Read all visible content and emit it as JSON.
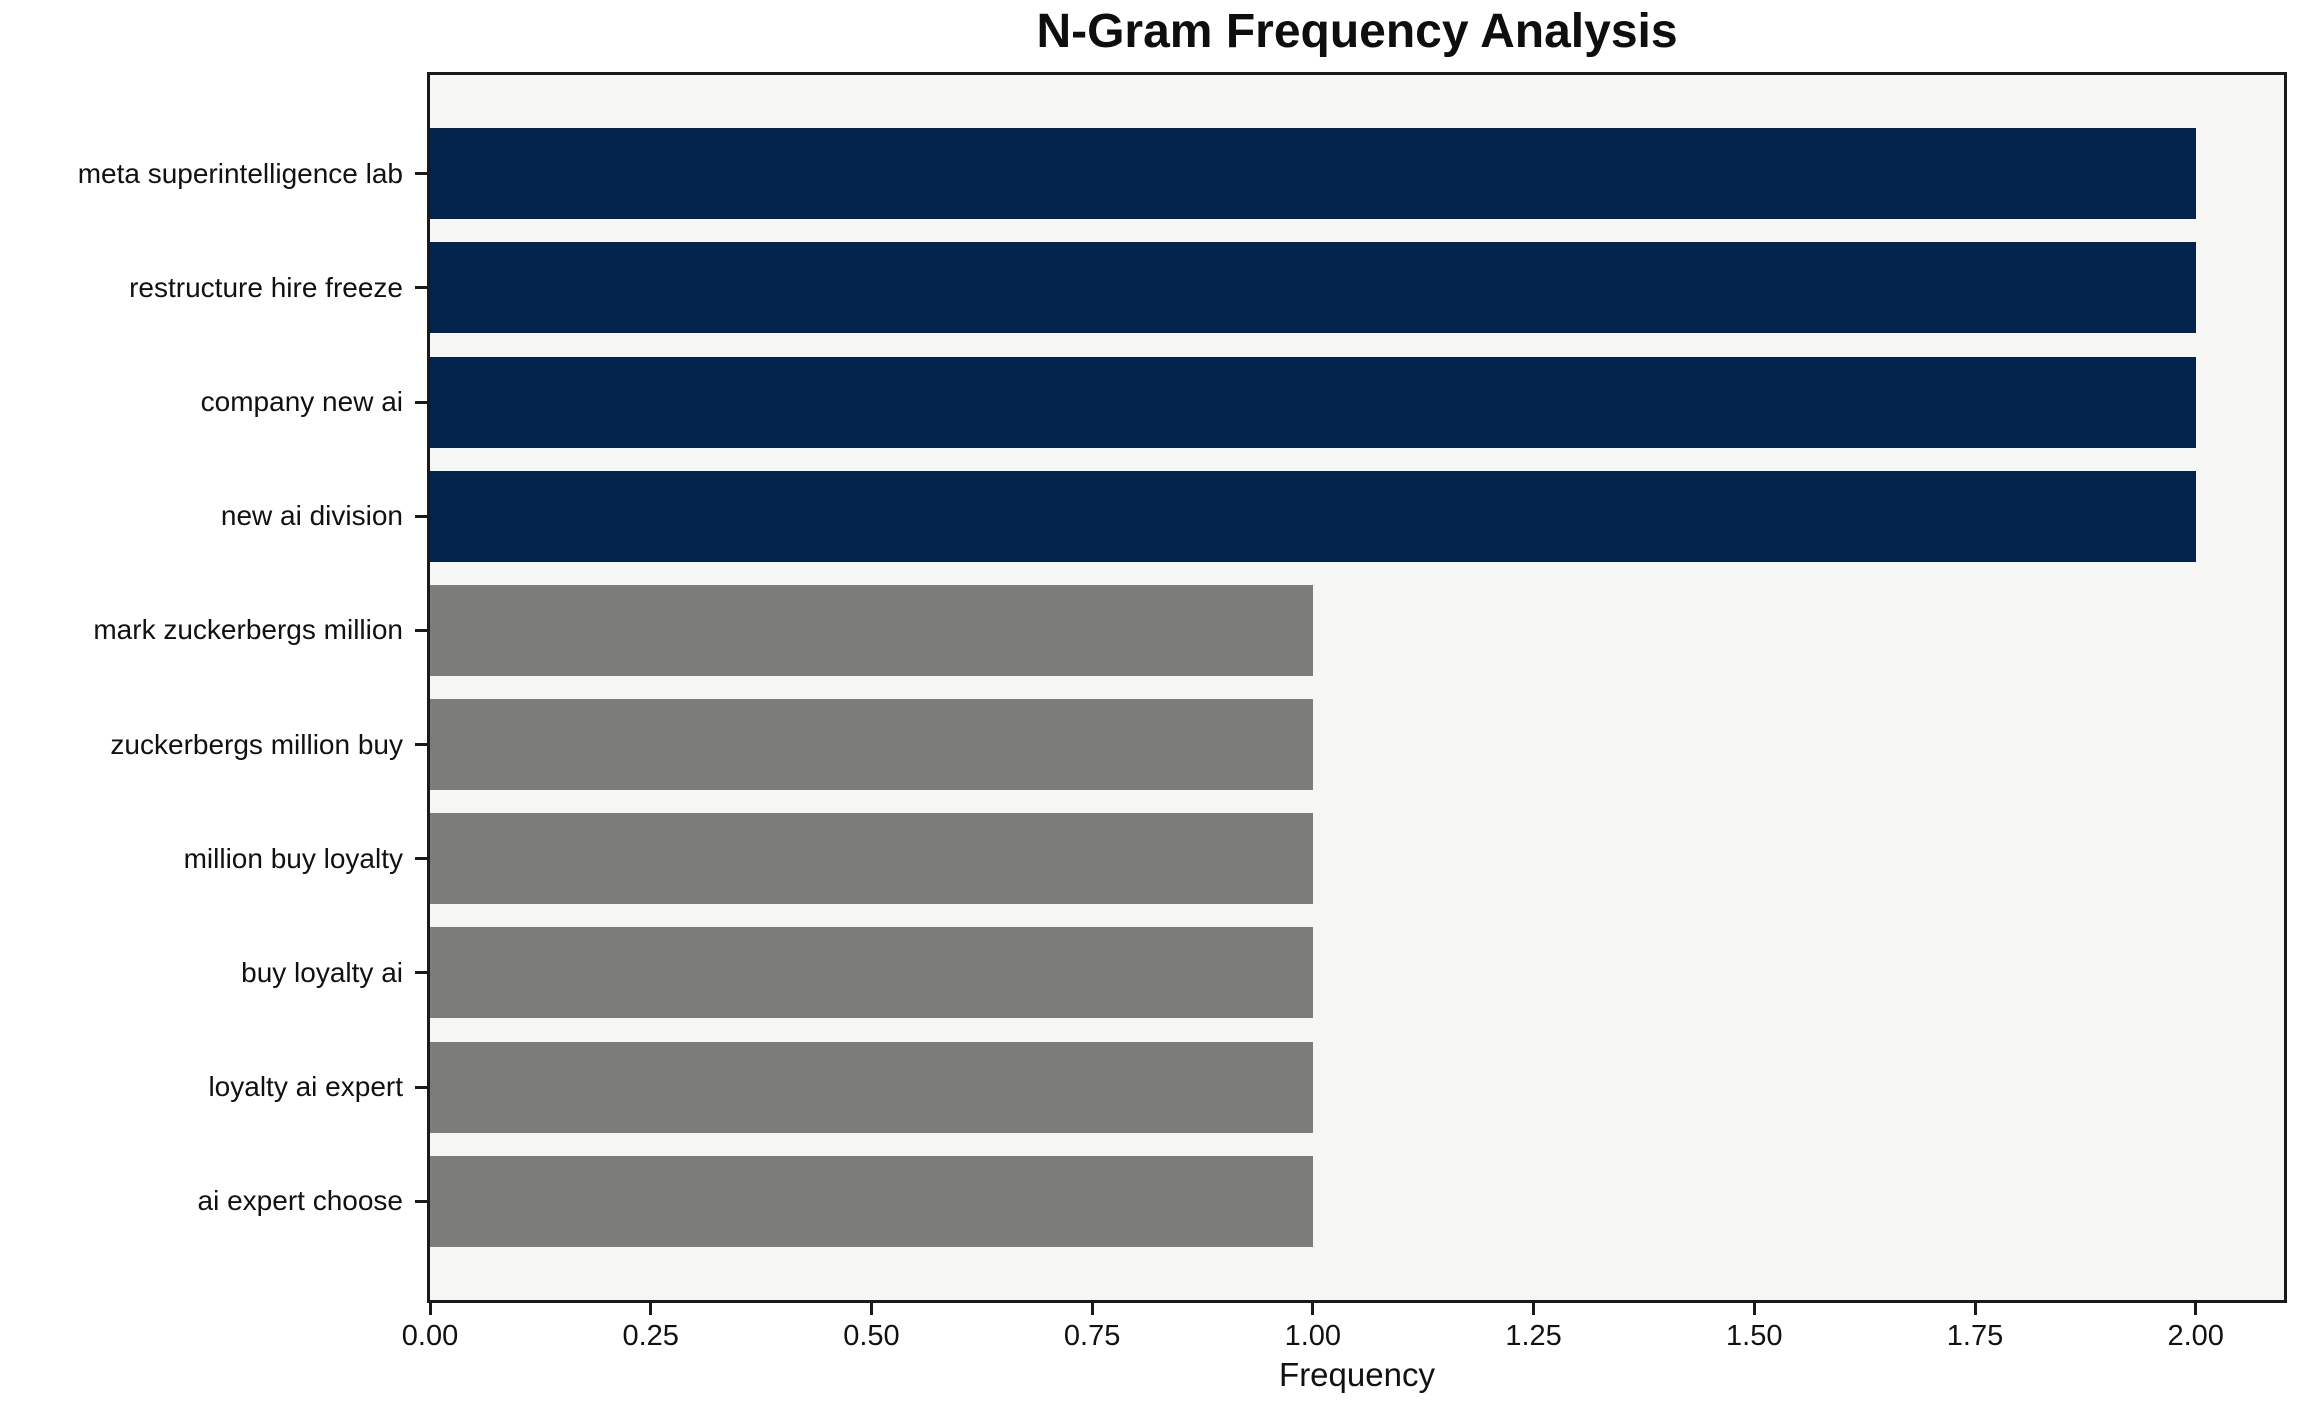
{
  "title": "N-Gram Frequency Analysis",
  "chart_data": {
    "type": "bar",
    "orientation": "horizontal",
    "title": "N-Gram Frequency Analysis",
    "categories": [
      "meta superintelligence lab",
      "restructure hire freeze",
      "company new ai",
      "new ai division",
      "mark zuckerbergs million",
      "zuckerbergs million buy",
      "million buy loyalty",
      "buy loyalty ai",
      "loyalty ai expert",
      "ai expert choose"
    ],
    "values": [
      2,
      2,
      2,
      2,
      1,
      1,
      1,
      1,
      1,
      1
    ],
    "bar_colors": [
      "#02234c",
      "#02234c",
      "#02234c",
      "#02234c",
      "#7c7c78",
      "#7c7c78",
      "#7c7c78",
      "#7c7c78",
      "#7c7c78",
      "#7c7c78"
    ],
    "xlabel": "Frequency",
    "ylabel": "",
    "xlim": [
      0,
      2.1
    ],
    "xtick_labels": [
      "0.00",
      "0.25",
      "0.50",
      "0.75",
      "1.00",
      "1.25",
      "1.50",
      "1.75",
      "2.00"
    ],
    "xtick_values": [
      0,
      0.25,
      0.5,
      0.75,
      1.0,
      1.25,
      1.5,
      1.75,
      2.0
    ],
    "grid": false,
    "legend": null,
    "colors": {
      "high_frequency_bar": "#02234c",
      "low_frequency_bar": "#7c7c78",
      "plot_background": "#f6f6f5",
      "figure_background": "#ffffff",
      "axis": "#1a1a1a",
      "text": "#111111"
    }
  }
}
